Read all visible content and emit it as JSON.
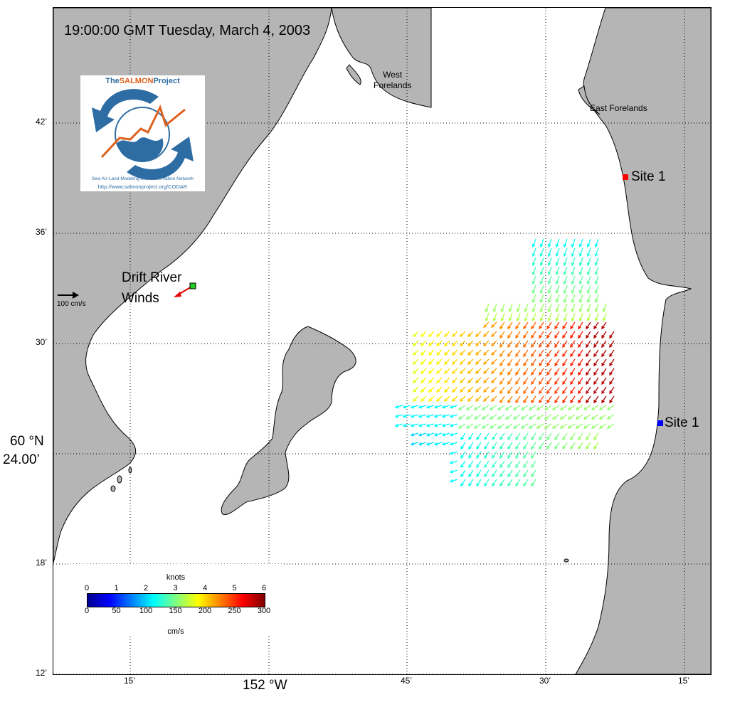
{
  "map": {
    "timestamp": "19:00:00 GMT Tuesday, March 4, 2003",
    "lat_ticks": [
      {
        "label": "42’",
        "minute": 42
      },
      {
        "label": "36’",
        "minute": 36
      },
      {
        "label": "30’",
        "minute": 30
      },
      {
        "label": "18’",
        "minute": 18
      },
      {
        "label": "12’",
        "minute": 12
      }
    ],
    "lat_main": {
      "line1": "60 °N",
      "line2": "24.00’",
      "minute": 24
    },
    "lon_ticks": [
      {
        "label": "15’",
        "minute": 15
      },
      {
        "label": "45’",
        "minute": 45
      },
      {
        "label": "30’",
        "minute": 30
      },
      {
        "label": "15’",
        "minute": 15
      }
    ],
    "lon_main": {
      "label": "152 °W"
    },
    "place_labels": {
      "west_forelands": [
        "West",
        "Forelands"
      ],
      "east_forelands": "East Forelands"
    },
    "sites": [
      {
        "label": "Site 1",
        "color": "#ff0000"
      },
      {
        "label": "Site 1",
        "color": "#0000ff"
      }
    ],
    "drift_river": {
      "line1": "Drift River",
      "line2": "Winds",
      "arrow_color": "#e00000",
      "marker_color": "#22cc22"
    },
    "scale_arrow": {
      "label": "100 cm/s"
    },
    "logo": {
      "title_a": "The",
      "title_b": "SALMON",
      "title_c": "Project",
      "subtitle": "Sea-Air-Land Modeling and Observation Network",
      "url": "http://www.salmonproject.org/CODAR",
      "colors": {
        "blue": "#2e6da4",
        "orange": "#e0601e"
      }
    },
    "colorbar": {
      "top_title": "knots",
      "top_ticks": [
        "0",
        "1",
        "2",
        "3",
        "4",
        "5",
        "6"
      ],
      "bottom_ticks": [
        "0",
        "50",
        "100",
        "150",
        "200",
        "250",
        "300"
      ],
      "bottom_title": "cm/s"
    },
    "colors": {
      "land": "#b5b5b5",
      "water": "#ffffff"
    }
  }
}
